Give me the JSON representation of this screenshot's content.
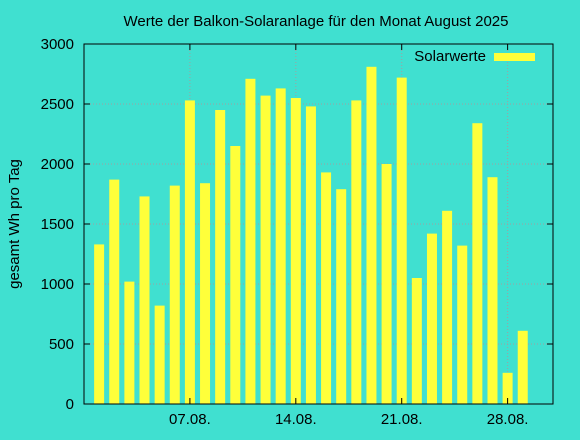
{
  "chart_data": {
    "type": "bar",
    "title": "Werte der Balkon-Solaranlage für den Monat August 2025",
    "xlabel": "",
    "ylabel": "gesamt Wh pro Tag",
    "ylim": [
      0,
      3000
    ],
    "yticks": [
      "0",
      "500",
      "1000",
      "1500",
      "2000",
      "2500",
      "3000"
    ],
    "xticks": [
      {
        "day": 7,
        "label": "07.08."
      },
      {
        "day": 14,
        "label": "14.08."
      },
      {
        "day": 21,
        "label": "21.08."
      },
      {
        "day": 28,
        "label": "28.08."
      }
    ],
    "x_range_days": [
      0,
      31
    ],
    "grid": true,
    "legend_position": "top-right",
    "days": [
      1,
      2,
      3,
      4,
      5,
      6,
      7,
      8,
      9,
      10,
      11,
      12,
      13,
      14,
      15,
      16,
      17,
      18,
      19,
      20,
      21,
      22,
      23,
      24,
      25,
      26,
      27,
      28,
      29,
      30
    ],
    "series": [
      {
        "name": "Solarwerte",
        "color": "#ffff3a",
        "values": [
          1330,
          1870,
          1020,
          1730,
          820,
          1820,
          2530,
          1840,
          2450,
          2150,
          2710,
          2570,
          2630,
          2550,
          2480,
          1930,
          1790,
          2530,
          2810,
          2000,
          2720,
          1050,
          1420,
          1610,
          1320,
          2340,
          1890,
          260,
          610,
          0
        ]
      }
    ],
    "colors": {
      "background": "#40e0d0",
      "bar": "#ffff3a",
      "grid": "#a0a0a0",
      "axis": "#000000"
    }
  }
}
